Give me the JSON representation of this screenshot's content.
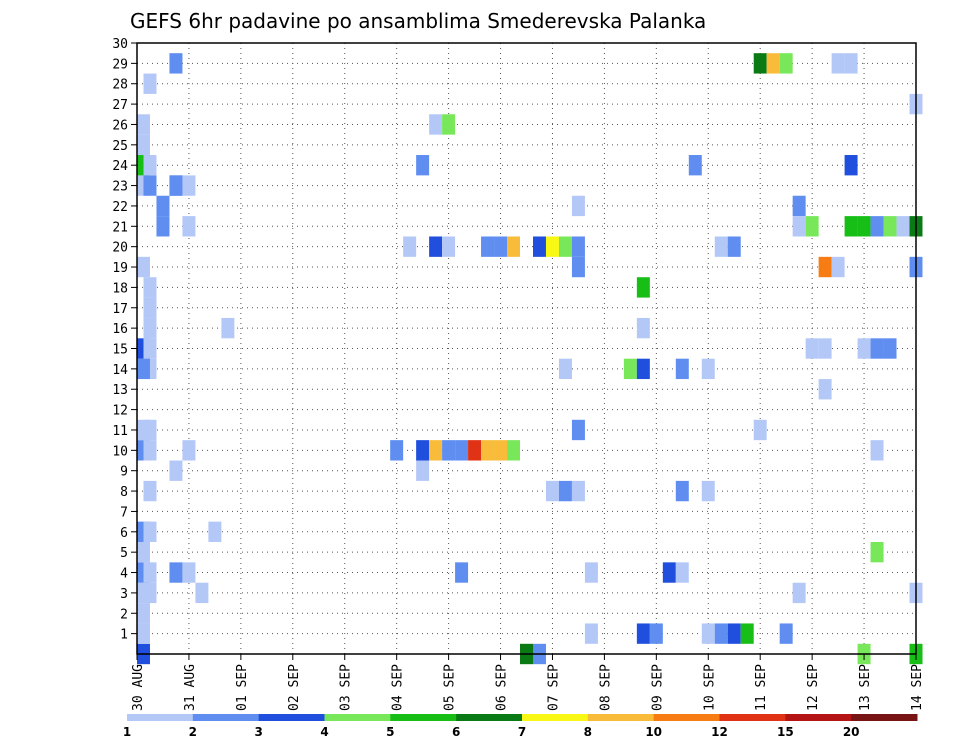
{
  "chart_data": {
    "type": "heatmap",
    "title": "GEFS 6hr padavine po ansamblima Smederevska Palanka",
    "xlabel": "",
    "ylabel": "",
    "x_ticks": [
      "30 AUG",
      "31 AUG",
      "01 SEP",
      "02 SEP",
      "03 SEP",
      "04 SEP",
      "05 SEP",
      "06 SEP",
      "07 SEP",
      "08 SEP",
      "09 SEP",
      "10 SEP",
      "11 SEP",
      "12 SEP",
      "13 SEP",
      "14 SEP"
    ],
    "x_range": [
      0,
      60
    ],
    "y_ticks": [
      "1",
      "2",
      "3",
      "4",
      "5",
      "6",
      "7",
      "8",
      "9",
      "10",
      "11",
      "12",
      "13",
      "14",
      "15",
      "16",
      "17",
      "18",
      "19",
      "20",
      "21",
      "22",
      "23",
      "24",
      "25",
      "26",
      "27",
      "28",
      "29",
      "30"
    ],
    "y_range": [
      0,
      30
    ],
    "grid": true,
    "colorbar": {
      "labels": [
        "1",
        "2",
        "3",
        "4",
        "5",
        "6",
        "7",
        "8",
        "10",
        "12",
        "15",
        "20"
      ],
      "colors": [
        "#b4c8f8",
        "#5f8ef0",
        "#1f4fdc",
        "#78e85a",
        "#16be16",
        "#0a7a14",
        "#f8f814",
        "#f8bc3a",
        "#f87c14",
        "#e03214",
        "#b41414",
        "#781414"
      ]
    },
    "cells": [
      [
        0,
        0,
        3
      ],
      [
        0,
        1,
        1
      ],
      [
        0,
        2,
        1
      ],
      [
        1,
        3,
        1
      ],
      [
        0,
        3,
        1
      ],
      [
        0,
        4,
        2
      ],
      [
        1,
        4,
        1
      ],
      [
        0,
        5,
        1
      ],
      [
        0,
        6,
        2
      ],
      [
        1,
        6,
        1
      ],
      [
        1,
        8,
        1
      ],
      [
        0,
        10,
        2
      ],
      [
        1,
        10,
        1
      ],
      [
        0,
        11,
        1
      ],
      [
        1,
        11,
        1
      ],
      [
        1,
        14,
        1
      ],
      [
        0,
        14,
        2
      ],
      [
        0,
        15,
        3
      ],
      [
        1,
        15,
        1
      ],
      [
        1,
        16,
        1
      ],
      [
        1,
        17,
        1
      ],
      [
        1,
        18,
        1
      ],
      [
        0,
        19,
        1
      ],
      [
        2,
        21,
        2
      ],
      [
        0,
        23,
        1
      ],
      [
        1,
        23,
        2
      ],
      [
        0,
        24,
        5
      ],
      [
        1,
        24,
        1
      ],
      [
        0,
        25,
        1
      ],
      [
        0,
        26,
        1
      ],
      [
        1,
        28,
        1
      ],
      [
        3,
        4,
        2
      ],
      [
        4,
        4,
        1
      ],
      [
        5,
        3,
        1
      ],
      [
        3,
        9,
        1
      ],
      [
        4,
        10,
        1
      ],
      [
        4,
        21,
        1
      ],
      [
        2,
        22,
        2
      ],
      [
        3,
        23,
        2
      ],
      [
        3,
        23,
        2
      ],
      [
        4,
        23,
        1
      ],
      [
        3,
        29,
        2
      ],
      [
        6,
        6,
        1
      ],
      [
        7,
        16,
        1
      ],
      [
        20,
        10,
        2
      ],
      [
        21,
        20,
        1
      ],
      [
        22,
        9,
        1
      ],
      [
        22,
        10,
        3
      ],
      [
        22,
        24,
        2
      ],
      [
        23,
        10,
        8
      ],
      [
        23,
        20,
        3
      ],
      [
        23,
        26,
        1
      ],
      [
        24,
        10,
        2
      ],
      [
        24,
        20,
        1
      ],
      [
        24,
        26,
        4
      ],
      [
        25,
        10,
        2
      ],
      [
        25,
        4,
        2
      ],
      [
        26,
        10,
        10
      ],
      [
        27,
        10,
        8
      ],
      [
        27,
        20,
        2
      ],
      [
        28,
        10,
        8
      ],
      [
        28,
        20,
        2
      ],
      [
        29,
        10,
        4
      ],
      [
        29,
        20,
        8
      ],
      [
        30,
        0,
        6
      ],
      [
        31,
        20,
        3
      ],
      [
        31,
        0,
        2
      ],
      [
        32,
        20,
        7
      ],
      [
        32,
        8,
        1
      ],
      [
        33,
        20,
        4
      ],
      [
        33,
        8,
        2
      ],
      [
        33,
        14,
        1
      ],
      [
        34,
        8,
        1
      ],
      [
        34,
        11,
        2
      ],
      [
        34,
        19,
        2
      ],
      [
        34,
        20,
        2
      ],
      [
        34,
        22,
        1
      ],
      [
        35,
        1,
        1
      ],
      [
        35,
        4,
        1
      ],
      [
        38,
        14,
        4
      ],
      [
        39,
        1,
        3
      ],
      [
        39,
        14,
        3
      ],
      [
        39,
        16,
        1
      ],
      [
        39,
        18,
        5
      ],
      [
        40,
        1,
        2
      ],
      [
        41,
        4,
        3
      ],
      [
        42,
        4,
        1
      ],
      [
        42,
        8,
        2
      ],
      [
        42,
        14,
        2
      ],
      [
        43,
        24,
        2
      ],
      [
        44,
        1,
        1
      ],
      [
        44,
        8,
        1
      ],
      [
        44,
        14,
        1
      ],
      [
        45,
        1,
        2
      ],
      [
        45,
        20,
        1
      ],
      [
        46,
        1,
        3
      ],
      [
        46,
        20,
        2
      ],
      [
        47,
        1,
        5
      ],
      [
        48,
        11,
        1
      ],
      [
        48,
        29,
        6
      ],
      [
        49,
        29,
        8
      ],
      [
        50,
        1,
        2
      ],
      [
        50,
        29,
        4
      ],
      [
        51,
        3,
        1
      ],
      [
        51,
        22,
        2
      ],
      [
        51,
        21,
        1
      ],
      [
        52,
        15,
        1
      ],
      [
        52,
        21,
        4
      ],
      [
        53,
        15,
        1
      ],
      [
        53,
        13,
        1
      ],
      [
        53,
        19,
        9
      ],
      [
        54,
        19,
        1
      ],
      [
        54,
        29,
        1
      ],
      [
        55,
        29,
        1
      ],
      [
        55,
        24,
        3
      ],
      [
        55,
        21,
        5
      ],
      [
        56,
        21,
        5
      ],
      [
        56,
        15,
        1
      ],
      [
        56,
        0,
        4
      ],
      [
        57,
        21,
        2
      ],
      [
        57,
        15,
        2
      ],
      [
        57,
        10,
        1
      ],
      [
        57,
        5,
        4
      ],
      [
        58,
        21,
        4
      ],
      [
        58,
        15,
        2
      ],
      [
        59,
        21,
        1
      ],
      [
        60,
        21,
        6
      ],
      [
        60,
        19,
        2
      ],
      [
        60,
        27,
        1
      ],
      [
        60,
        3,
        1
      ],
      [
        60,
        0,
        5
      ]
    ]
  }
}
